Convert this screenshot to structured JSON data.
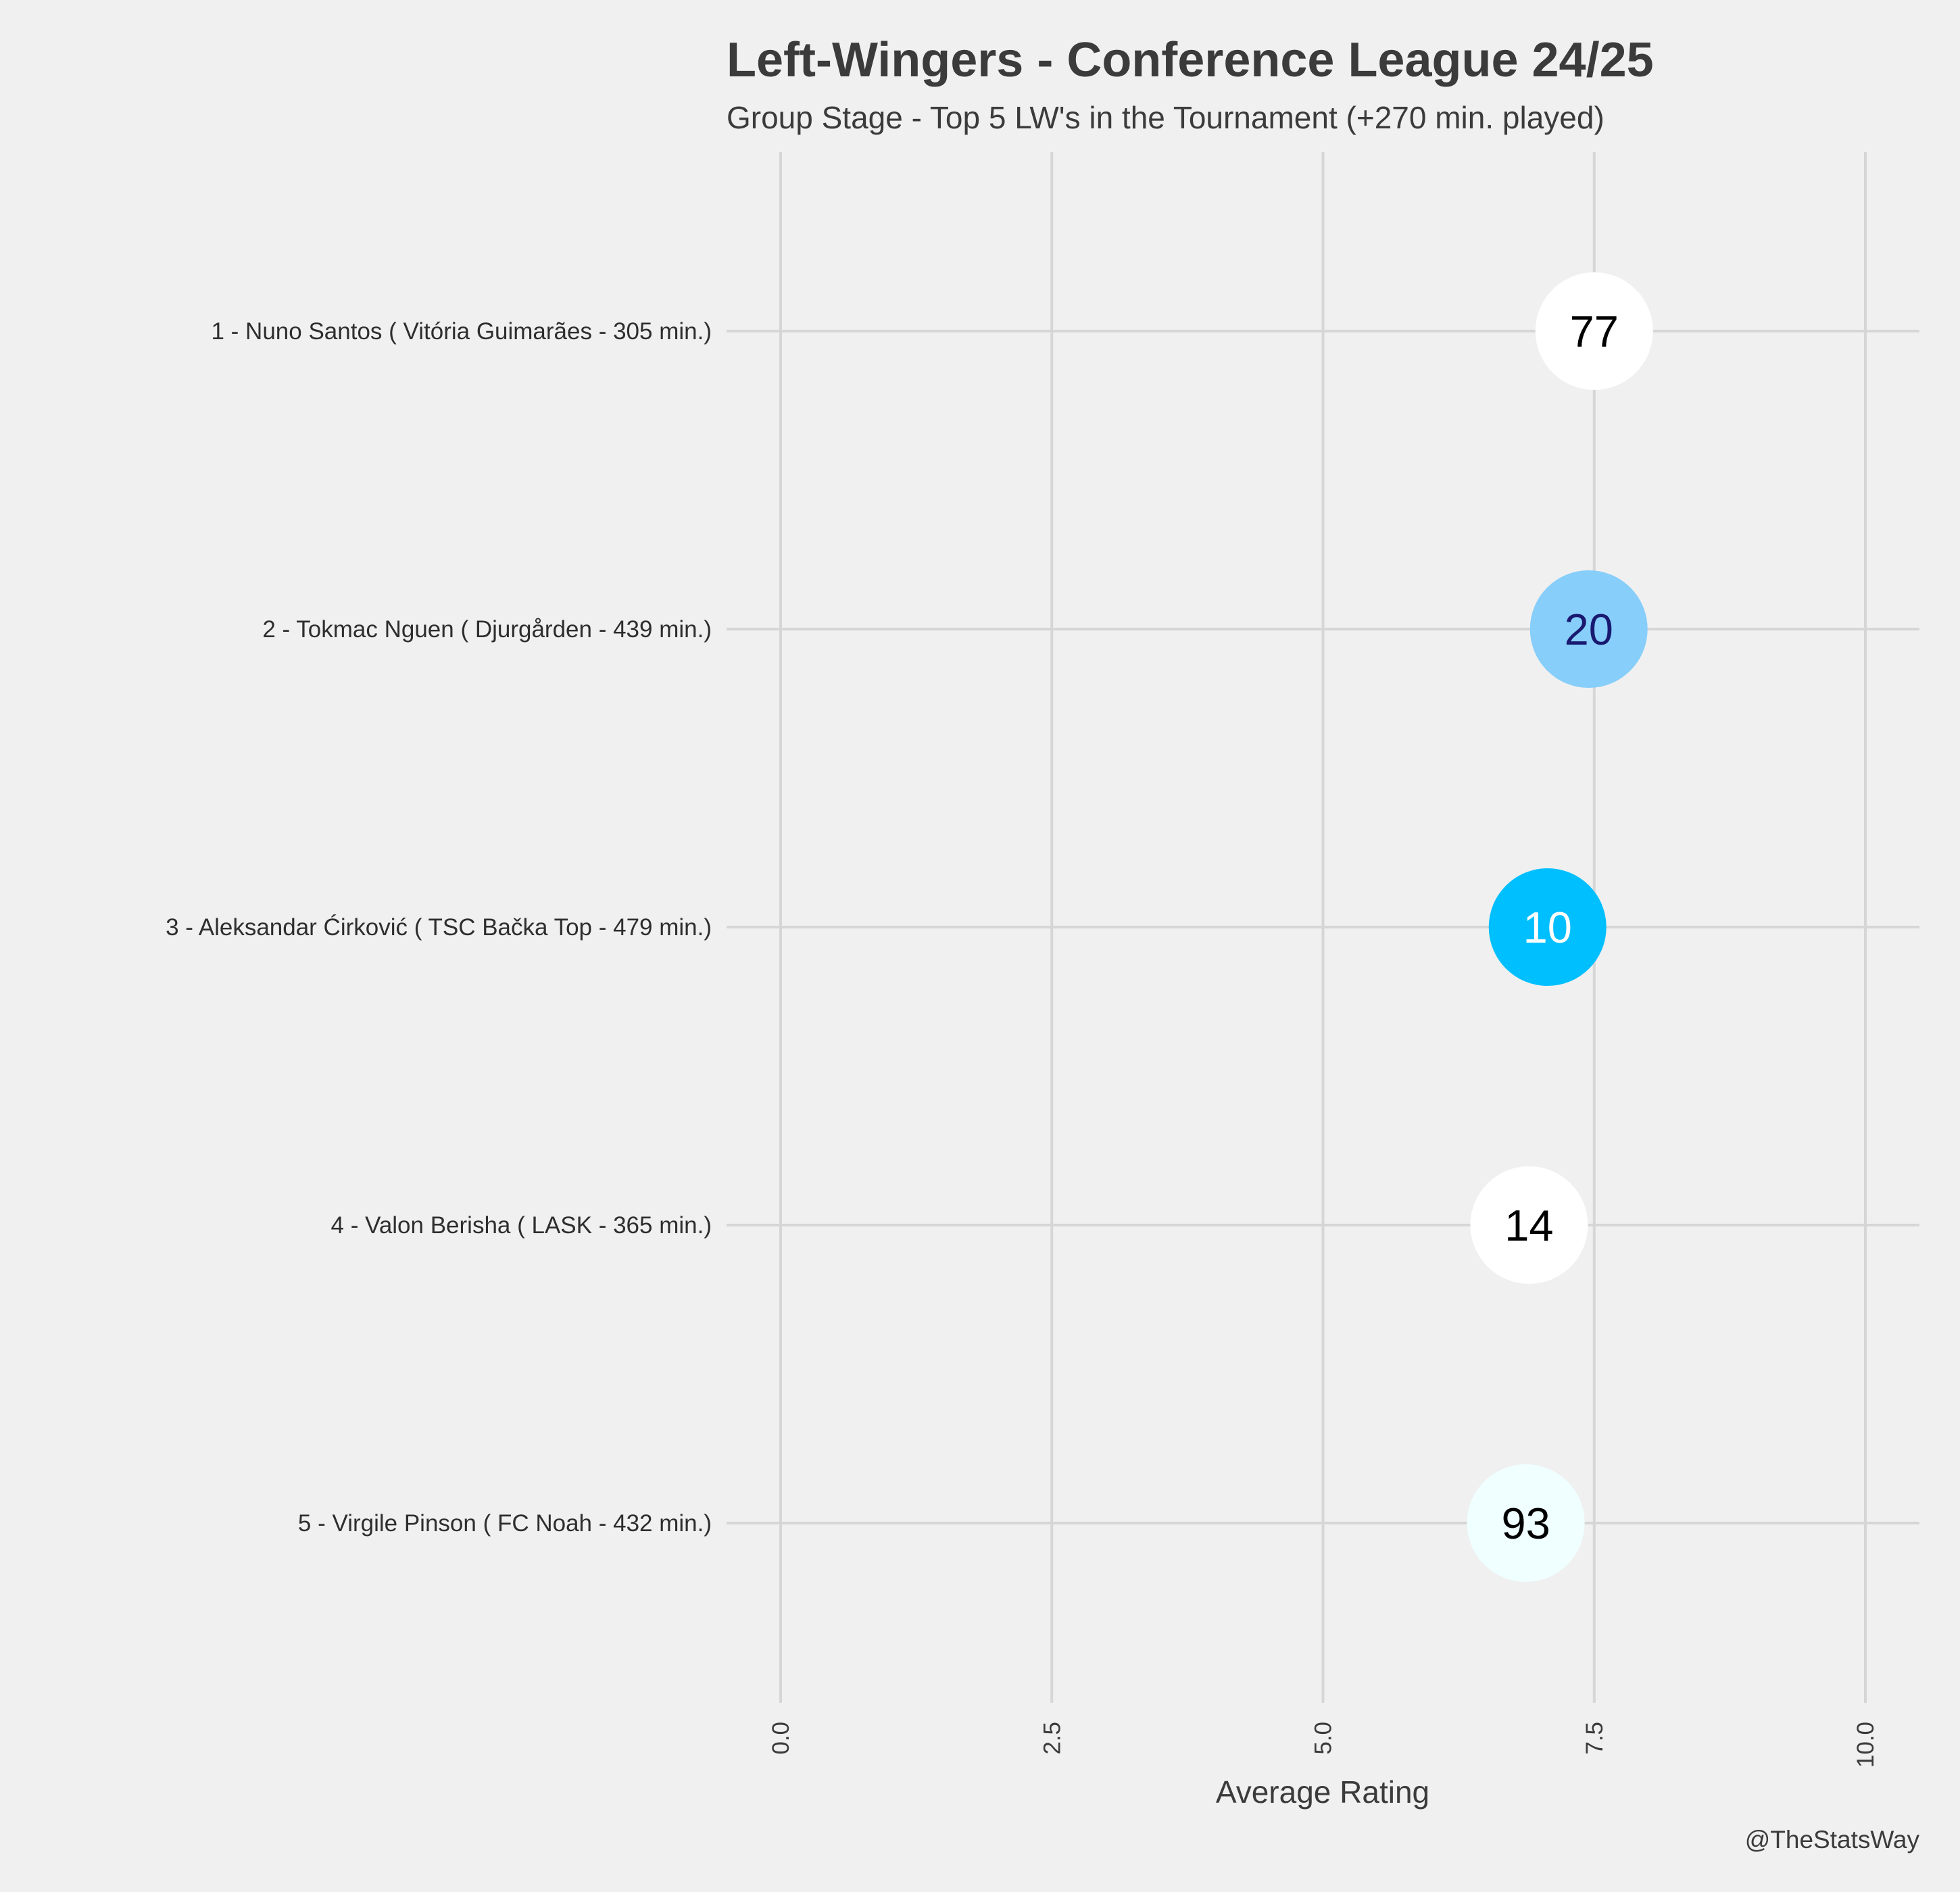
{
  "chart_data": {
    "type": "scatter",
    "title": "Left-Wingers - Conference League 24/25",
    "subtitle": "Group Stage - Top 5 LW's in the Tournament (+270 min. played)",
    "xlabel": "Average Rating",
    "xlim": [
      0,
      10
    ],
    "xticks": [
      "0.0",
      "2.5",
      "5.0",
      "7.5",
      "10.0"
    ],
    "xtick_values": [
      0,
      2.5,
      5,
      7.5,
      10
    ],
    "grid": true,
    "credit": "@TheStatsWay",
    "players": [
      {
        "label": "1 - Nuno Santos  ( Vitória Guimarães - 305 min.)",
        "rating": 7.5,
        "number": "77",
        "color": "#ffffff",
        "text_color": "#000000"
      },
      {
        "label": "2 - Tokmac Nguen  ( Djurgården - 439 min.)",
        "rating": 7.45,
        "number": "20",
        "color": "#87cefa",
        "text_color": "#191970"
      },
      {
        "label": "3 - Aleksandar Ćirković  ( TSC Bačka Top - 479 min.)",
        "rating": 7.07,
        "number": "10",
        "color": "#00bfff",
        "text_color": "#ffffff"
      },
      {
        "label": "4 - Valon Berisha  ( LASK - 365 min.)",
        "rating": 6.9,
        "number": "14",
        "color": "#ffffff",
        "text_color": "#000000"
      },
      {
        "label": "5 - Virgile Pinson  ( FC Noah - 432 min.)",
        "rating": 6.87,
        "number": "93",
        "color": "#f0ffff",
        "text_color": "#000000"
      }
    ]
  }
}
